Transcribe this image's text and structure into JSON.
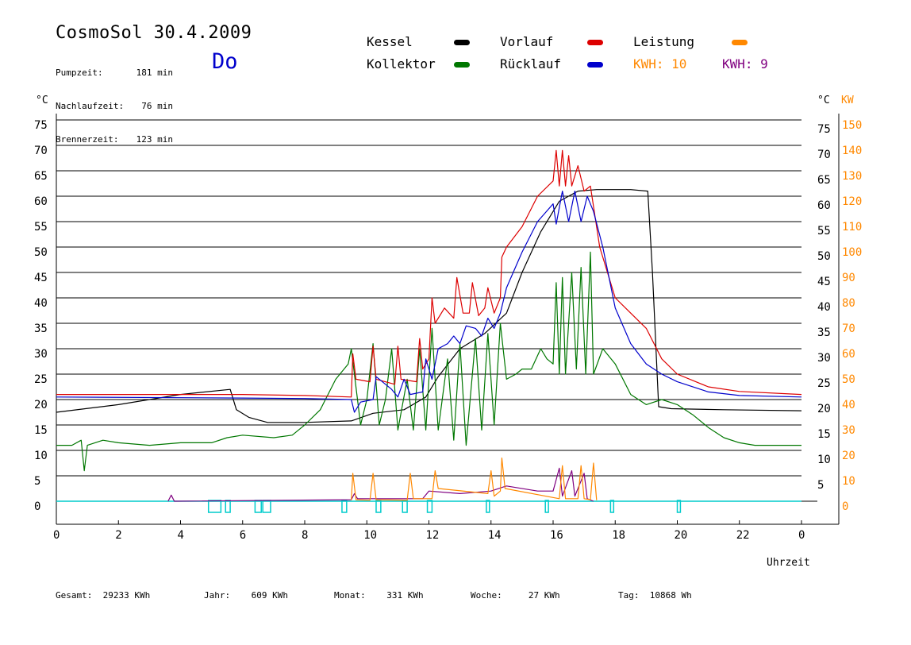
{
  "header": {
    "title": "CosmoSol 30.4.2009",
    "day": "Do",
    "stats": [
      {
        "label": "Pumpzeit:",
        "value": "181 min"
      },
      {
        "label": "Nachlaufzeit:",
        "value": "76 min"
      },
      {
        "label": "Brennerzeit:",
        "value": "123 min"
      }
    ]
  },
  "legend": {
    "kessel": {
      "label": "Kessel",
      "color": "#000000"
    },
    "kollektor": {
      "label": "Kollektor",
      "color": "#007700"
    },
    "vorlauf": {
      "label": "Vorlauf",
      "color": "#dd0000"
    },
    "ruecklauf": {
      "label": "Rücklauf",
      "color": "#0000cc"
    },
    "leistung": {
      "label": "Leistung",
      "color": "#ff8800"
    },
    "kwh1": {
      "label": "KWH: 10",
      "color": "#ff8800"
    },
    "kwh2": {
      "label": "KWH: 9",
      "color": "#800080"
    }
  },
  "footer": {
    "gesamt": {
      "label": "Gesamt:",
      "value": "29233 KWh"
    },
    "jahr": {
      "label": "Jahr:",
      "value": "609 KWh"
    },
    "monat": {
      "label": "Monat:",
      "value": "331 KWh"
    },
    "woche": {
      "label": "Woche:",
      "value": "27 KWh"
    },
    "tag": {
      "label": "Tag:",
      "value": "10868 Wh"
    }
  },
  "chart_data": {
    "type": "line",
    "xlabel": "Uhrzeit",
    "ylabel_left": "°C",
    "ylabel_right_temp": "°C",
    "ylabel_right_power": "KW",
    "x_ticks": [
      "0",
      "2",
      "4",
      "6",
      "8",
      "10",
      "12",
      "14",
      "16",
      "18",
      "20",
      "22",
      "0"
    ],
    "xlim": [
      0,
      24
    ],
    "y_ticks_left": [
      "0",
      "5",
      "10",
      "15",
      "20",
      "25",
      "30",
      "35",
      "40",
      "45",
      "50",
      "55",
      "60",
      "65",
      "70",
      "75"
    ],
    "y_ticks_right_temp": [
      "5",
      "10",
      "15",
      "20",
      "25",
      "30",
      "35",
      "40",
      "45",
      "50",
      "55",
      "60",
      "65",
      "70",
      "75"
    ],
    "y_ticks_right_power": [
      "0",
      "10",
      "20",
      "30",
      "40",
      "50",
      "60",
      "70",
      "80",
      "90",
      "100",
      "110",
      "120",
      "130",
      "140",
      "150"
    ],
    "ylim": [
      0,
      75
    ],
    "grid": "horizontal",
    "series": [
      {
        "name": "Kessel",
        "color": "#000000",
        "points": [
          [
            0,
            17.5
          ],
          [
            2,
            19
          ],
          [
            4,
            21
          ],
          [
            5.6,
            22
          ],
          [
            5.8,
            18
          ],
          [
            6.2,
            16.5
          ],
          [
            6.8,
            15.5
          ],
          [
            8,
            15.5
          ],
          [
            9.5,
            15.8
          ],
          [
            10.2,
            17.3
          ],
          [
            11.2,
            18
          ],
          [
            11.9,
            20.5
          ],
          [
            12.3,
            24.5
          ],
          [
            13,
            30
          ],
          [
            13.8,
            33
          ],
          [
            14.5,
            37
          ],
          [
            15,
            45
          ],
          [
            15.6,
            53
          ],
          [
            16.2,
            59
          ],
          [
            16.8,
            61
          ],
          [
            17.4,
            61.3
          ],
          [
            18.5,
            61.3
          ],
          [
            19.05,
            61
          ],
          [
            19.2,
            45
          ],
          [
            19.4,
            18.6
          ],
          [
            19.8,
            18.2
          ],
          [
            21.5,
            18
          ],
          [
            24,
            17.8
          ]
        ]
      },
      {
        "name": "Vorlauf",
        "color": "#dd0000",
        "points": [
          [
            0,
            21
          ],
          [
            6,
            21
          ],
          [
            8,
            20.8
          ],
          [
            9.5,
            20.5
          ],
          [
            9.55,
            29
          ],
          [
            9.65,
            24
          ],
          [
            10.1,
            23.5
          ],
          [
            10.2,
            30.5
          ],
          [
            10.3,
            24
          ],
          [
            10.9,
            23
          ],
          [
            11,
            30.5
          ],
          [
            11.1,
            24
          ],
          [
            11.6,
            23.5
          ],
          [
            11.7,
            32
          ],
          [
            11.8,
            26
          ],
          [
            12,
            28
          ],
          [
            12.1,
            40
          ],
          [
            12.2,
            35
          ],
          [
            12.5,
            38
          ],
          [
            12.8,
            36
          ],
          [
            12.9,
            44
          ],
          [
            13.1,
            37
          ],
          [
            13.3,
            37
          ],
          [
            13.4,
            43
          ],
          [
            13.6,
            36.5
          ],
          [
            13.8,
            38
          ],
          [
            13.9,
            42
          ],
          [
            14.1,
            37
          ],
          [
            14.3,
            40
          ],
          [
            14.35,
            48
          ],
          [
            14.5,
            50
          ],
          [
            15,
            54
          ],
          [
            15.5,
            60
          ],
          [
            16,
            63
          ],
          [
            16.1,
            69
          ],
          [
            16.2,
            62
          ],
          [
            16.3,
            69
          ],
          [
            16.4,
            62
          ],
          [
            16.5,
            68
          ],
          [
            16.6,
            62
          ],
          [
            16.8,
            66
          ],
          [
            17,
            61
          ],
          [
            17.2,
            62
          ],
          [
            17.5,
            50
          ],
          [
            18,
            40
          ],
          [
            18.5,
            37
          ],
          [
            19,
            34
          ],
          [
            19.5,
            28
          ],
          [
            20,
            25
          ],
          [
            21,
            22.5
          ],
          [
            22,
            21.6
          ],
          [
            24,
            21
          ]
        ]
      },
      {
        "name": "Rücklauf",
        "color": "#0000cc",
        "points": [
          [
            0,
            20.5
          ],
          [
            6,
            20.3
          ],
          [
            8,
            20.2
          ],
          [
            9.5,
            20
          ],
          [
            9.6,
            17.5
          ],
          [
            9.8,
            19.5
          ],
          [
            10.2,
            20
          ],
          [
            10.3,
            24.5
          ],
          [
            10.8,
            22
          ],
          [
            11,
            20.5
          ],
          [
            11.2,
            24
          ],
          [
            11.4,
            21
          ],
          [
            11.8,
            21.5
          ],
          [
            11.9,
            28
          ],
          [
            12.1,
            24
          ],
          [
            12.3,
            30
          ],
          [
            12.6,
            31
          ],
          [
            12.8,
            32.5
          ],
          [
            13,
            31
          ],
          [
            13.2,
            34.5
          ],
          [
            13.5,
            34
          ],
          [
            13.7,
            32.5
          ],
          [
            13.9,
            36
          ],
          [
            14.1,
            34
          ],
          [
            14.3,
            37
          ],
          [
            14.5,
            42
          ],
          [
            15,
            49
          ],
          [
            15.5,
            55
          ],
          [
            16,
            58.5
          ],
          [
            16.1,
            54.5
          ],
          [
            16.3,
            61
          ],
          [
            16.5,
            55
          ],
          [
            16.7,
            61
          ],
          [
            16.9,
            55
          ],
          [
            17.1,
            60
          ],
          [
            17.3,
            57
          ],
          [
            17.6,
            50
          ],
          [
            18,
            38
          ],
          [
            18.5,
            31
          ],
          [
            19,
            27
          ],
          [
            19.5,
            25
          ],
          [
            20,
            23.5
          ],
          [
            21,
            21.5
          ],
          [
            22,
            20.8
          ],
          [
            24,
            20.5
          ]
        ]
      },
      {
        "name": "Kollektor",
        "color": "#007700",
        "points": [
          [
            0,
            11
          ],
          [
            0.5,
            11
          ],
          [
            0.8,
            12
          ],
          [
            0.9,
            6
          ],
          [
            1,
            11
          ],
          [
            1.5,
            12
          ],
          [
            2,
            11.5
          ],
          [
            3,
            11
          ],
          [
            4,
            11.5
          ],
          [
            5,
            11.5
          ],
          [
            5.5,
            12.5
          ],
          [
            6,
            13
          ],
          [
            7,
            12.5
          ],
          [
            7.6,
            13
          ],
          [
            8,
            15
          ],
          [
            8.5,
            18
          ],
          [
            9,
            24
          ],
          [
            9.4,
            27
          ],
          [
            9.5,
            30
          ],
          [
            9.8,
            15
          ],
          [
            10,
            20
          ],
          [
            10.2,
            31
          ],
          [
            10.4,
            15
          ],
          [
            10.6,
            20
          ],
          [
            10.8,
            30
          ],
          [
            11,
            14
          ],
          [
            11.3,
            24
          ],
          [
            11.5,
            14
          ],
          [
            11.7,
            30
          ],
          [
            11.9,
            14
          ],
          [
            12.1,
            34
          ],
          [
            12.3,
            14
          ],
          [
            12.6,
            28
          ],
          [
            12.8,
            12
          ],
          [
            13,
            31
          ],
          [
            13.2,
            11
          ],
          [
            13.5,
            32
          ],
          [
            13.7,
            14
          ],
          [
            13.9,
            33
          ],
          [
            14.1,
            15
          ],
          [
            14.3,
            35
          ],
          [
            14.5,
            24
          ],
          [
            14.8,
            25
          ],
          [
            15,
            26
          ],
          [
            15.3,
            26
          ],
          [
            15.6,
            30
          ],
          [
            15.8,
            28
          ],
          [
            16,
            27
          ],
          [
            16.1,
            43
          ],
          [
            16.2,
            25
          ],
          [
            16.3,
            44
          ],
          [
            16.4,
            25
          ],
          [
            16.6,
            45
          ],
          [
            16.75,
            26
          ],
          [
            16.9,
            46
          ],
          [
            17.05,
            25
          ],
          [
            17.2,
            49
          ],
          [
            17.3,
            25
          ],
          [
            17.6,
            30
          ],
          [
            18,
            27
          ],
          [
            18.5,
            21
          ],
          [
            19,
            19
          ],
          [
            19.5,
            20
          ],
          [
            20,
            19
          ],
          [
            20.5,
            17
          ],
          [
            21,
            14.5
          ],
          [
            21.5,
            12.5
          ],
          [
            22,
            11.5
          ],
          [
            22.5,
            11
          ],
          [
            23,
            11
          ],
          [
            24,
            11
          ]
        ]
      },
      {
        "name": "Leistung",
        "color": "#ff8800",
        "points": [
          [
            9.5,
            0.2
          ],
          [
            9.55,
            5.5
          ],
          [
            9.65,
            0.3
          ],
          [
            10.1,
            0.2
          ],
          [
            10.2,
            5.5
          ],
          [
            10.3,
            0.3
          ],
          [
            11.3,
            0.2
          ],
          [
            11.4,
            5.5
          ],
          [
            11.5,
            0.5
          ],
          [
            12.1,
            0.5
          ],
          [
            12.2,
            6
          ],
          [
            12.3,
            2.5
          ],
          [
            13.9,
            1.5
          ],
          [
            14.0,
            6
          ],
          [
            14.1,
            1
          ],
          [
            14.3,
            2
          ],
          [
            14.35,
            8.5
          ],
          [
            14.45,
            2.5
          ],
          [
            16.2,
            0.5
          ],
          [
            16.3,
            7
          ],
          [
            16.4,
            0.5
          ],
          [
            16.8,
            0.5
          ],
          [
            16.9,
            7
          ],
          [
            17.0,
            0.5
          ],
          [
            17.2,
            0.3
          ],
          [
            17.3,
            7.5
          ],
          [
            17.4,
            0.2
          ]
        ]
      },
      {
        "name": "KWH",
        "color": "#800080",
        "points": [
          [
            3.6,
            0
          ],
          [
            3.7,
            1.2
          ],
          [
            3.8,
            0
          ],
          [
            9.5,
            0.3
          ],
          [
            9.6,
            1.5
          ],
          [
            9.7,
            0.5
          ],
          [
            11.8,
            0.5
          ],
          [
            12,
            2
          ],
          [
            13,
            1.5
          ],
          [
            14,
            2
          ],
          [
            14.5,
            3
          ],
          [
            15.5,
            2
          ],
          [
            16,
            2
          ],
          [
            16.2,
            6.5
          ],
          [
            16.3,
            1
          ],
          [
            16.6,
            6
          ],
          [
            16.7,
            1
          ],
          [
            17,
            5.5
          ],
          [
            17.1,
            0.5
          ],
          [
            17.3,
            0
          ]
        ]
      }
    ],
    "pump_markers": [
      [
        4.9,
        5.3
      ],
      [
        5.45,
        5.6
      ],
      [
        6.4,
        6.6
      ],
      [
        6.65,
        6.9
      ],
      [
        9.2,
        9.35
      ],
      [
        10.3,
        10.45
      ],
      [
        11.15,
        11.3
      ],
      [
        11.95,
        12.1
      ],
      [
        13.85,
        13.95
      ],
      [
        15.75,
        15.85
      ],
      [
        17.85,
        17.95
      ],
      [
        20,
        20.1
      ]
    ]
  }
}
